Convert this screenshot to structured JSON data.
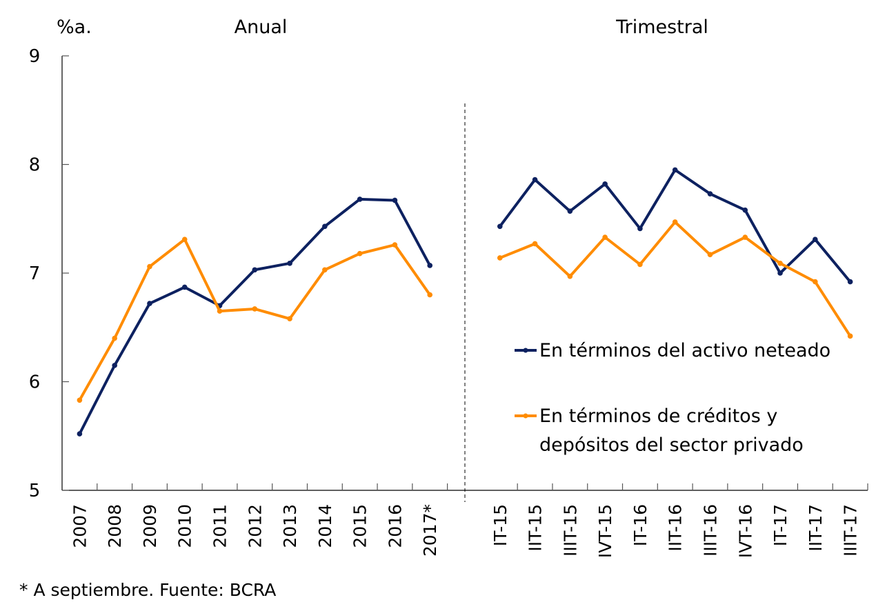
{
  "chart_data": {
    "type": "line",
    "title": "",
    "ylabel": "%a.",
    "xlabel": "",
    "ylim": [
      5,
      9
    ],
    "yticks": [
      "5",
      "6",
      "7",
      "8",
      "9"
    ],
    "grid": false,
    "panels": [
      {
        "name": "Anual",
        "categories": [
          "2007",
          "2008",
          "2009",
          "2010",
          "2011",
          "2012",
          "2013",
          "2014",
          "2015",
          "2016",
          "2017*"
        ]
      },
      {
        "name": "Trimestral",
        "categories": [
          "IT-15",
          "IIT-15",
          "IIIT-15",
          "IVT-15",
          "IT-16",
          "IIT-16",
          "IIIT-16",
          "IVT-16",
          "IT-17",
          "IIT-17",
          "IIIT-17"
        ]
      }
    ],
    "series": [
      {
        "name": "En términos del activo neteado",
        "color": "#0D2160",
        "annual": [
          5.52,
          6.15,
          6.72,
          6.87,
          6.7,
          7.03,
          7.09,
          7.43,
          7.68,
          7.67,
          7.07
        ],
        "quarterly": [
          7.43,
          7.86,
          7.57,
          7.82,
          7.41,
          7.95,
          7.73,
          7.58,
          7.0,
          7.31,
          6.92
        ]
      },
      {
        "name": "En términos de créditos y depósitos del sector privado",
        "name_lines": [
          "En términos de créditos y",
          "depósitos del sector privado"
        ],
        "color": "#FF8C00",
        "annual": [
          5.83,
          6.4,
          7.06,
          7.31,
          6.65,
          6.67,
          6.58,
          7.03,
          7.18,
          7.26,
          6.8
        ],
        "quarterly": [
          7.14,
          7.27,
          6.97,
          7.33,
          7.08,
          7.47,
          7.17,
          7.33,
          7.09,
          6.92,
          6.42
        ]
      }
    ],
    "legend": "right-middle",
    "footnote": "* A septiembre. Fuente: BCRA"
  }
}
